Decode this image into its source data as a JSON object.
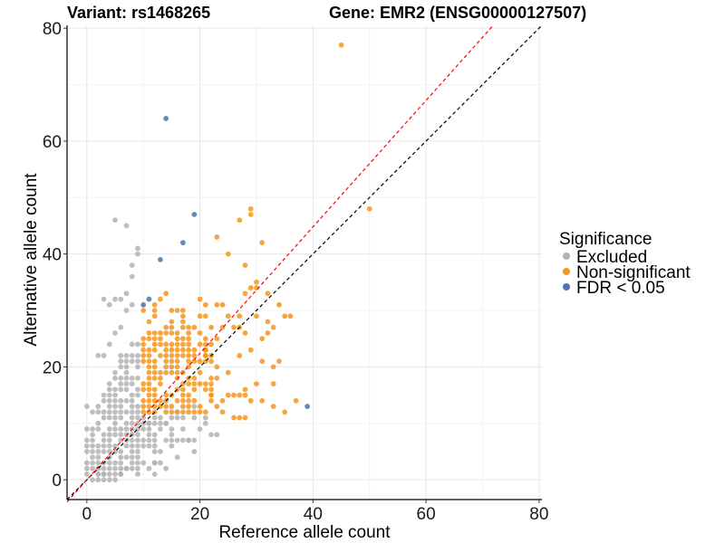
{
  "chart_data": {
    "type": "scatter",
    "title_left": "Variant: rs1468265",
    "title_right": "Gene: EMR2 (ENSG00000127507)",
    "xlabel": "Reference allele count",
    "ylabel": "Alternative allele count",
    "xlim": [
      -3.5,
      80.5
    ],
    "ylim": [
      -3.5,
      80.5
    ],
    "x_ticks": [
      0,
      20,
      40,
      60,
      80
    ],
    "y_ticks": [
      0,
      20,
      40,
      60,
      80
    ],
    "x_tick_labels": [
      "0",
      "20",
      "40",
      "60",
      "80"
    ],
    "y_tick_labels": [
      "0",
      "20",
      "40",
      "60",
      "80"
    ],
    "grid": true,
    "reference_lines": [
      {
        "name": "identity",
        "slope": 1.0,
        "intercept": 0,
        "color": "#000000",
        "style": "dashed"
      },
      {
        "name": "fitted",
        "slope": 1.12,
        "intercept": 0,
        "color": "#ff0000",
        "style": "dashed"
      }
    ],
    "legend": {
      "title": "Significance",
      "position": "right",
      "entries": [
        {
          "label": "Excluded",
          "color": "#b3b3b3"
        },
        {
          "label": "Non-significant",
          "color": "#f5961e"
        },
        {
          "label": "FDR < 0.05",
          "color": "#4a78a8"
        }
      ]
    },
    "series": [
      {
        "name": "Excluded",
        "color": "#b3b3b3",
        "cluster": {
          "x_range": [
            0,
            9
          ],
          "y_range": [
            1,
            30
          ],
          "density": 0.8
        },
        "extra_points": [
          [
            1,
            0
          ],
          [
            2,
            0
          ],
          [
            3,
            0
          ],
          [
            4,
            0
          ],
          [
            5,
            0
          ],
          [
            2,
            1
          ],
          [
            3,
            1
          ],
          [
            6,
            1
          ],
          [
            7,
            2
          ],
          [
            12,
            1
          ],
          [
            14,
            2
          ],
          [
            12,
            3
          ],
          [
            16,
            4
          ],
          [
            19,
            5
          ],
          [
            15,
            6
          ],
          [
            18,
            7
          ],
          [
            17,
            9
          ],
          [
            20,
            9
          ],
          [
            23,
            8
          ],
          [
            22,
            8
          ],
          [
            13,
            9
          ],
          [
            11,
            10
          ],
          [
            12,
            10
          ],
          [
            14,
            10
          ],
          [
            15,
            11
          ],
          [
            16,
            12
          ],
          [
            19,
            13
          ],
          [
            0,
            13
          ],
          [
            1,
            12
          ],
          [
            2,
            22
          ],
          [
            3,
            22
          ],
          [
            4,
            24
          ],
          [
            5,
            26
          ],
          [
            6,
            27
          ],
          [
            4,
            31
          ],
          [
            5,
            32
          ],
          [
            3,
            32
          ],
          [
            7,
            33
          ],
          [
            8,
            36
          ],
          [
            9,
            40
          ],
          [
            8,
            38
          ],
          [
            5,
            46
          ],
          [
            7,
            45
          ],
          [
            9,
            41
          ],
          [
            7,
            30
          ],
          [
            8,
            31
          ],
          [
            6,
            32
          ]
        ]
      },
      {
        "name": "Non-significant",
        "color": "#f5961e",
        "cluster": {
          "x_range": [
            10,
            22
          ],
          "y_range": [
            12,
            30
          ],
          "density": 0.75
        },
        "extra_points": [
          [
            45,
            77
          ],
          [
            50,
            48
          ],
          [
            29,
            48
          ],
          [
            29,
            47
          ],
          [
            27,
            46
          ],
          [
            23,
            43
          ],
          [
            31,
            42
          ],
          [
            25,
            40
          ],
          [
            28,
            38
          ],
          [
            29,
            34
          ],
          [
            30,
            35
          ],
          [
            28,
            33
          ],
          [
            32,
            33
          ],
          [
            30,
            34
          ],
          [
            34,
            31
          ],
          [
            13,
            32
          ],
          [
            12,
            31
          ],
          [
            14,
            33
          ],
          [
            20,
            32
          ],
          [
            21,
            31
          ],
          [
            23,
            31
          ],
          [
            24,
            31
          ],
          [
            25,
            29
          ],
          [
            27,
            29
          ],
          [
            30,
            29
          ],
          [
            32,
            28
          ],
          [
            35,
            29
          ],
          [
            36,
            29
          ],
          [
            24,
            27
          ],
          [
            26,
            27
          ],
          [
            27,
            27
          ],
          [
            28,
            26
          ],
          [
            31,
            25
          ],
          [
            32,
            26
          ],
          [
            33,
            27
          ],
          [
            29,
            23
          ],
          [
            31,
            21
          ],
          [
            34,
            21
          ],
          [
            33,
            20
          ],
          [
            27,
            22
          ],
          [
            23,
            20
          ],
          [
            25,
            19
          ],
          [
            28,
            16
          ],
          [
            30,
            17
          ],
          [
            33,
            17
          ],
          [
            25,
            15
          ],
          [
            26,
            15
          ],
          [
            27,
            15
          ],
          [
            28,
            15
          ],
          [
            29,
            14
          ],
          [
            31,
            14
          ],
          [
            37,
            14
          ],
          [
            33,
            13
          ],
          [
            24,
            12
          ],
          [
            26,
            11
          ],
          [
            27,
            11
          ],
          [
            28,
            11
          ],
          [
            35,
            12
          ],
          [
            23,
            13
          ],
          [
            24,
            14
          ],
          [
            22,
            15
          ],
          [
            21,
            16
          ],
          [
            20,
            17
          ],
          [
            23,
            18
          ],
          [
            19,
            22
          ],
          [
            21,
            22
          ],
          [
            22,
            24
          ],
          [
            23,
            25
          ],
          [
            21,
            23
          ]
        ]
      },
      {
        "name": "FDR < 0.05",
        "color": "#4a78a8",
        "cluster": null,
        "extra_points": [
          [
            14,
            64
          ],
          [
            19,
            47
          ],
          [
            17,
            42
          ],
          [
            13,
            39
          ],
          [
            11,
            32
          ],
          [
            10,
            31
          ],
          [
            39,
            13
          ]
        ]
      }
    ]
  }
}
